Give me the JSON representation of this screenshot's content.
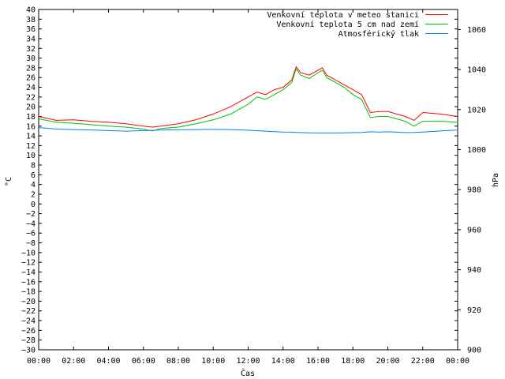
{
  "chart_data": {
    "type": "line",
    "title": "",
    "xlabel": "Čas",
    "ylabel": "°C",
    "y2label": "hPa",
    "xlim": [
      0,
      24
    ],
    "ylim": [
      -30,
      40
    ],
    "y2lim": [
      900,
      1070
    ],
    "x_ticks": [
      "00:00",
      "02:00",
      "04:00",
      "06:00",
      "08:00",
      "10:00",
      "12:00",
      "14:00",
      "16:00",
      "18:00",
      "20:00",
      "22:00",
      "00:00"
    ],
    "y_ticks": [
      -30,
      -28,
      -26,
      -24,
      -22,
      -20,
      -18,
      -16,
      -14,
      -12,
      -10,
      -8,
      -6,
      -4,
      -2,
      0,
      2,
      4,
      6,
      8,
      10,
      12,
      14,
      16,
      18,
      20,
      22,
      24,
      26,
      28,
      30,
      32,
      34,
      36,
      38,
      40
    ],
    "y2_ticks": [
      900,
      920,
      940,
      960,
      980,
      1000,
      1020,
      1040,
      1060
    ],
    "grid": false,
    "legend_position": "top-right",
    "x": [
      0,
      1,
      2,
      3,
      4,
      5,
      6,
      6.5,
      7,
      8,
      9,
      10,
      11,
      12,
      12.5,
      13,
      13.5,
      14,
      14.5,
      14.75,
      15,
      15.5,
      16,
      16.25,
      16.5,
      17,
      17.5,
      18,
      18.5,
      19,
      19.5,
      20,
      20.5,
      21,
      21.5,
      22,
      23,
      24
    ],
    "series": [
      {
        "name": "Venkovní teplota v meteo stanici",
        "color": "#ff0000",
        "axis": "left",
        "values": [
          18,
          17.2,
          17.3,
          17,
          16.8,
          16.5,
          16,
          15.8,
          16,
          16.5,
          17.3,
          18.5,
          20,
          22,
          23,
          22.5,
          23.5,
          24,
          25.5,
          28.2,
          27,
          26.5,
          27.5,
          28,
          26.5,
          25.5,
          24.5,
          23.5,
          22.5,
          18.8,
          19,
          19,
          18.5,
          18,
          17.2,
          18.8,
          18.5,
          18
        ]
      },
      {
        "name": "Venkovní teplota 5 cm nad zemí",
        "color": "#00c000",
        "axis": "left",
        "values": [
          17.5,
          16.8,
          16.6,
          16.3,
          16,
          15.8,
          15.4,
          15,
          15.5,
          15.8,
          16.5,
          17.3,
          18.5,
          20.5,
          22,
          21.5,
          22.5,
          23.5,
          25,
          27.8,
          26.5,
          25.8,
          27,
          27.5,
          26,
          25,
          24,
          22.5,
          21.5,
          17.8,
          18,
          18,
          17.5,
          17,
          16,
          17,
          17,
          16.8
        ]
      },
      {
        "name": "Atmosférický tlak",
        "color": "#0080ff",
        "axis": "right",
        "values": [
          1011,
          1010.3,
          1010,
          1009.8,
          1009.5,
          1009.2,
          1009.5,
          1009.6,
          1009.8,
          1009.9,
          1010,
          1010.1,
          1010,
          1009.7,
          1009.4,
          1009.2,
          1009,
          1008.8,
          1008.7,
          1008.6,
          1008.5,
          1008.4,
          1008.3,
          1008.3,
          1008.3,
          1008.3,
          1008.4,
          1008.5,
          1008.6,
          1008.9,
          1008.8,
          1008.9,
          1008.7,
          1008.5,
          1008.6,
          1008.8,
          1009.3,
          1009.8
        ]
      }
    ]
  }
}
